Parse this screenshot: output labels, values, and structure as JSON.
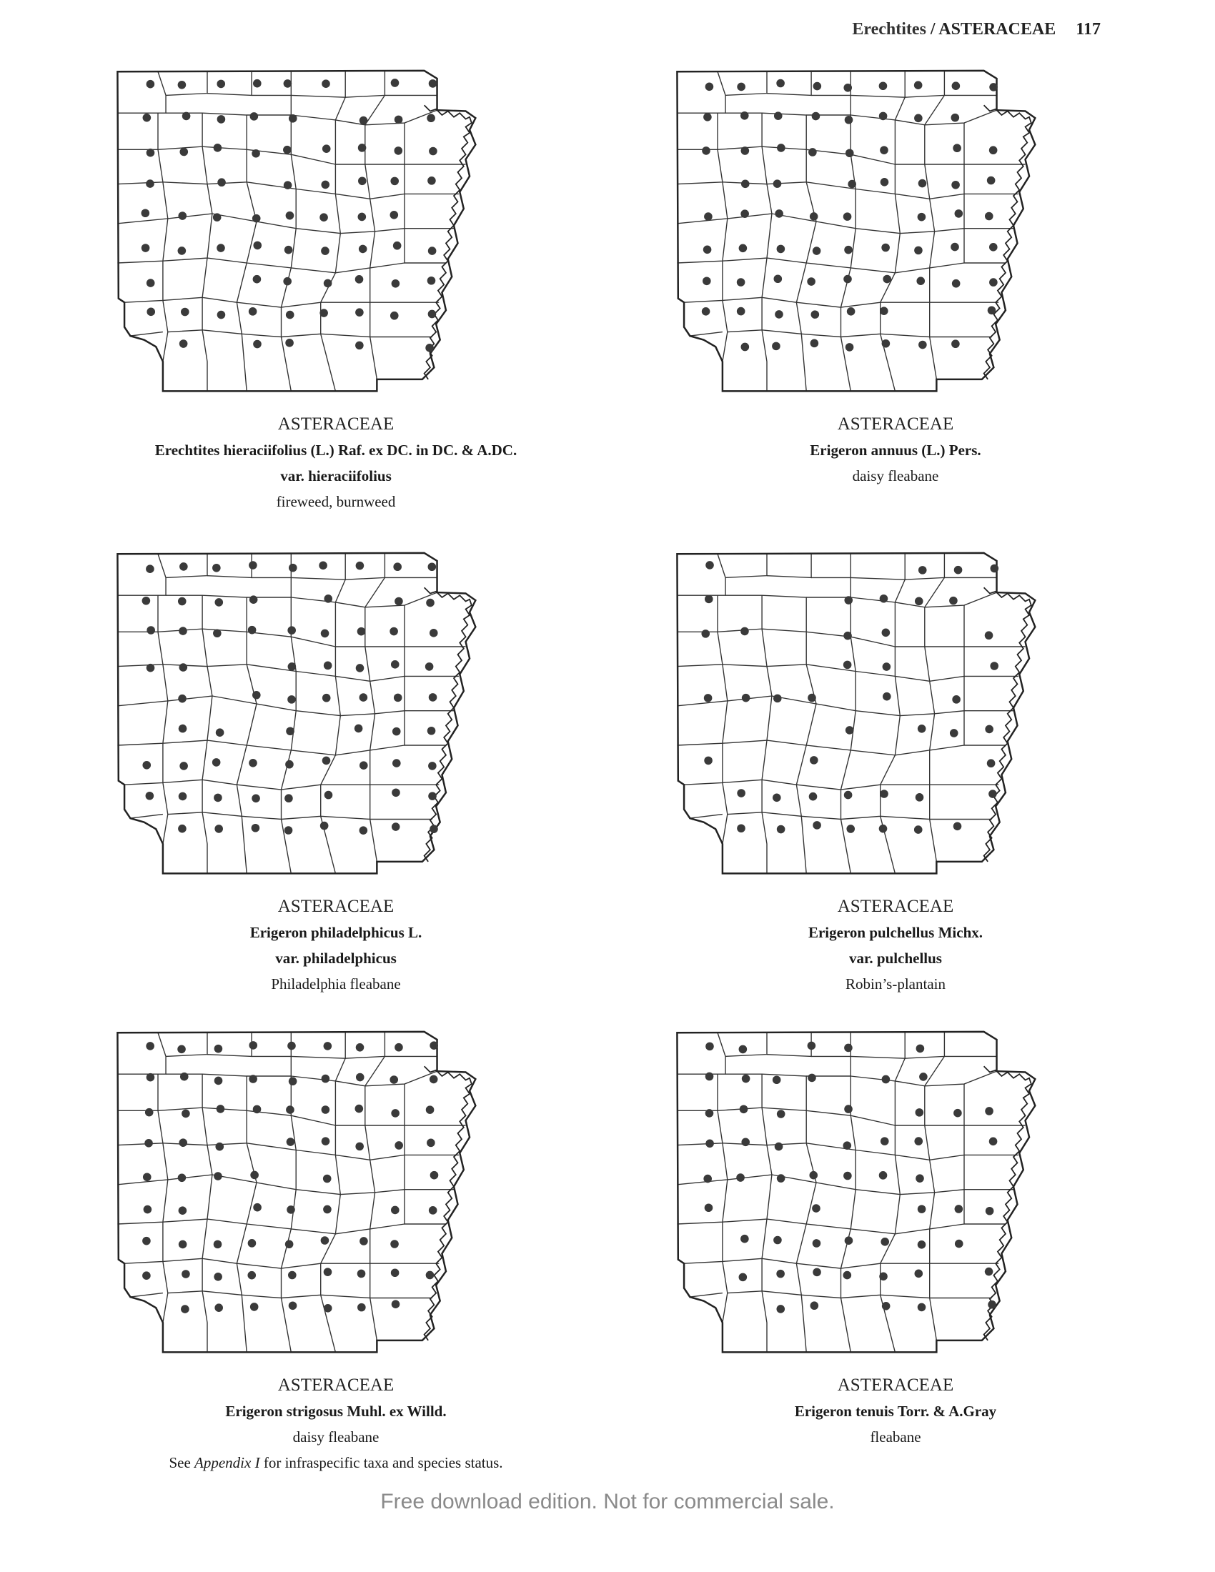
{
  "header": {
    "genus": "Erechtites",
    "separator": " / ",
    "family": "ASTERACEAE",
    "page_number": "117"
  },
  "maps": [
    {
      "family": "ASTERACEAE",
      "scientific_name": "Erechtites hieraciifolius (L.) Raf. ex DC. in DC. & A.DC.",
      "variety": "var. hieraciifolius",
      "common_name": "fireweed, burnweed",
      "note_prefix": "",
      "note_italic": "",
      "note_suffix": "",
      "occurrence_count": 70
    },
    {
      "family": "ASTERACEAE",
      "scientific_name": "Erigeron annuus (L.) Pers.",
      "variety": "",
      "common_name": "daisy fleabane",
      "note_prefix": "",
      "note_italic": "",
      "note_suffix": "",
      "occurrence_count": 72
    },
    {
      "family": "ASTERACEAE",
      "scientific_name": "Erigeron philadelphicus L.",
      "variety": "var. philadelphicus",
      "common_name": "Philadelphia fleabane",
      "note_prefix": "",
      "note_italic": "",
      "note_suffix": "",
      "occurrence_count": 70
    },
    {
      "family": "ASTERACEAE",
      "scientific_name": "Erigeron pulchellus Michx.",
      "variety": "var. pulchellus",
      "common_name": "Robin’s-plantain",
      "note_prefix": "",
      "note_italic": "",
      "note_suffix": "",
      "occurrence_count": 44
    },
    {
      "family": "ASTERACEAE",
      "scientific_name": "Erigeron strigosus Muhl. ex Willd.",
      "variety": "",
      "common_name": "daisy fleabane",
      "note_prefix": "See ",
      "note_italic": "Appendix I",
      "note_suffix": " for infraspecific taxa and species status.",
      "occurrence_count": 72
    },
    {
      "family": "ASTERACEAE",
      "scientific_name": "Erigeron tenuis Torr. & A.Gray",
      "variety": "",
      "common_name": "fleabane",
      "note_prefix": "",
      "note_italic": "",
      "note_suffix": "",
      "occurrence_count": 56
    }
  ],
  "footer": {
    "text": "Free download edition. Not for commercial sale."
  }
}
